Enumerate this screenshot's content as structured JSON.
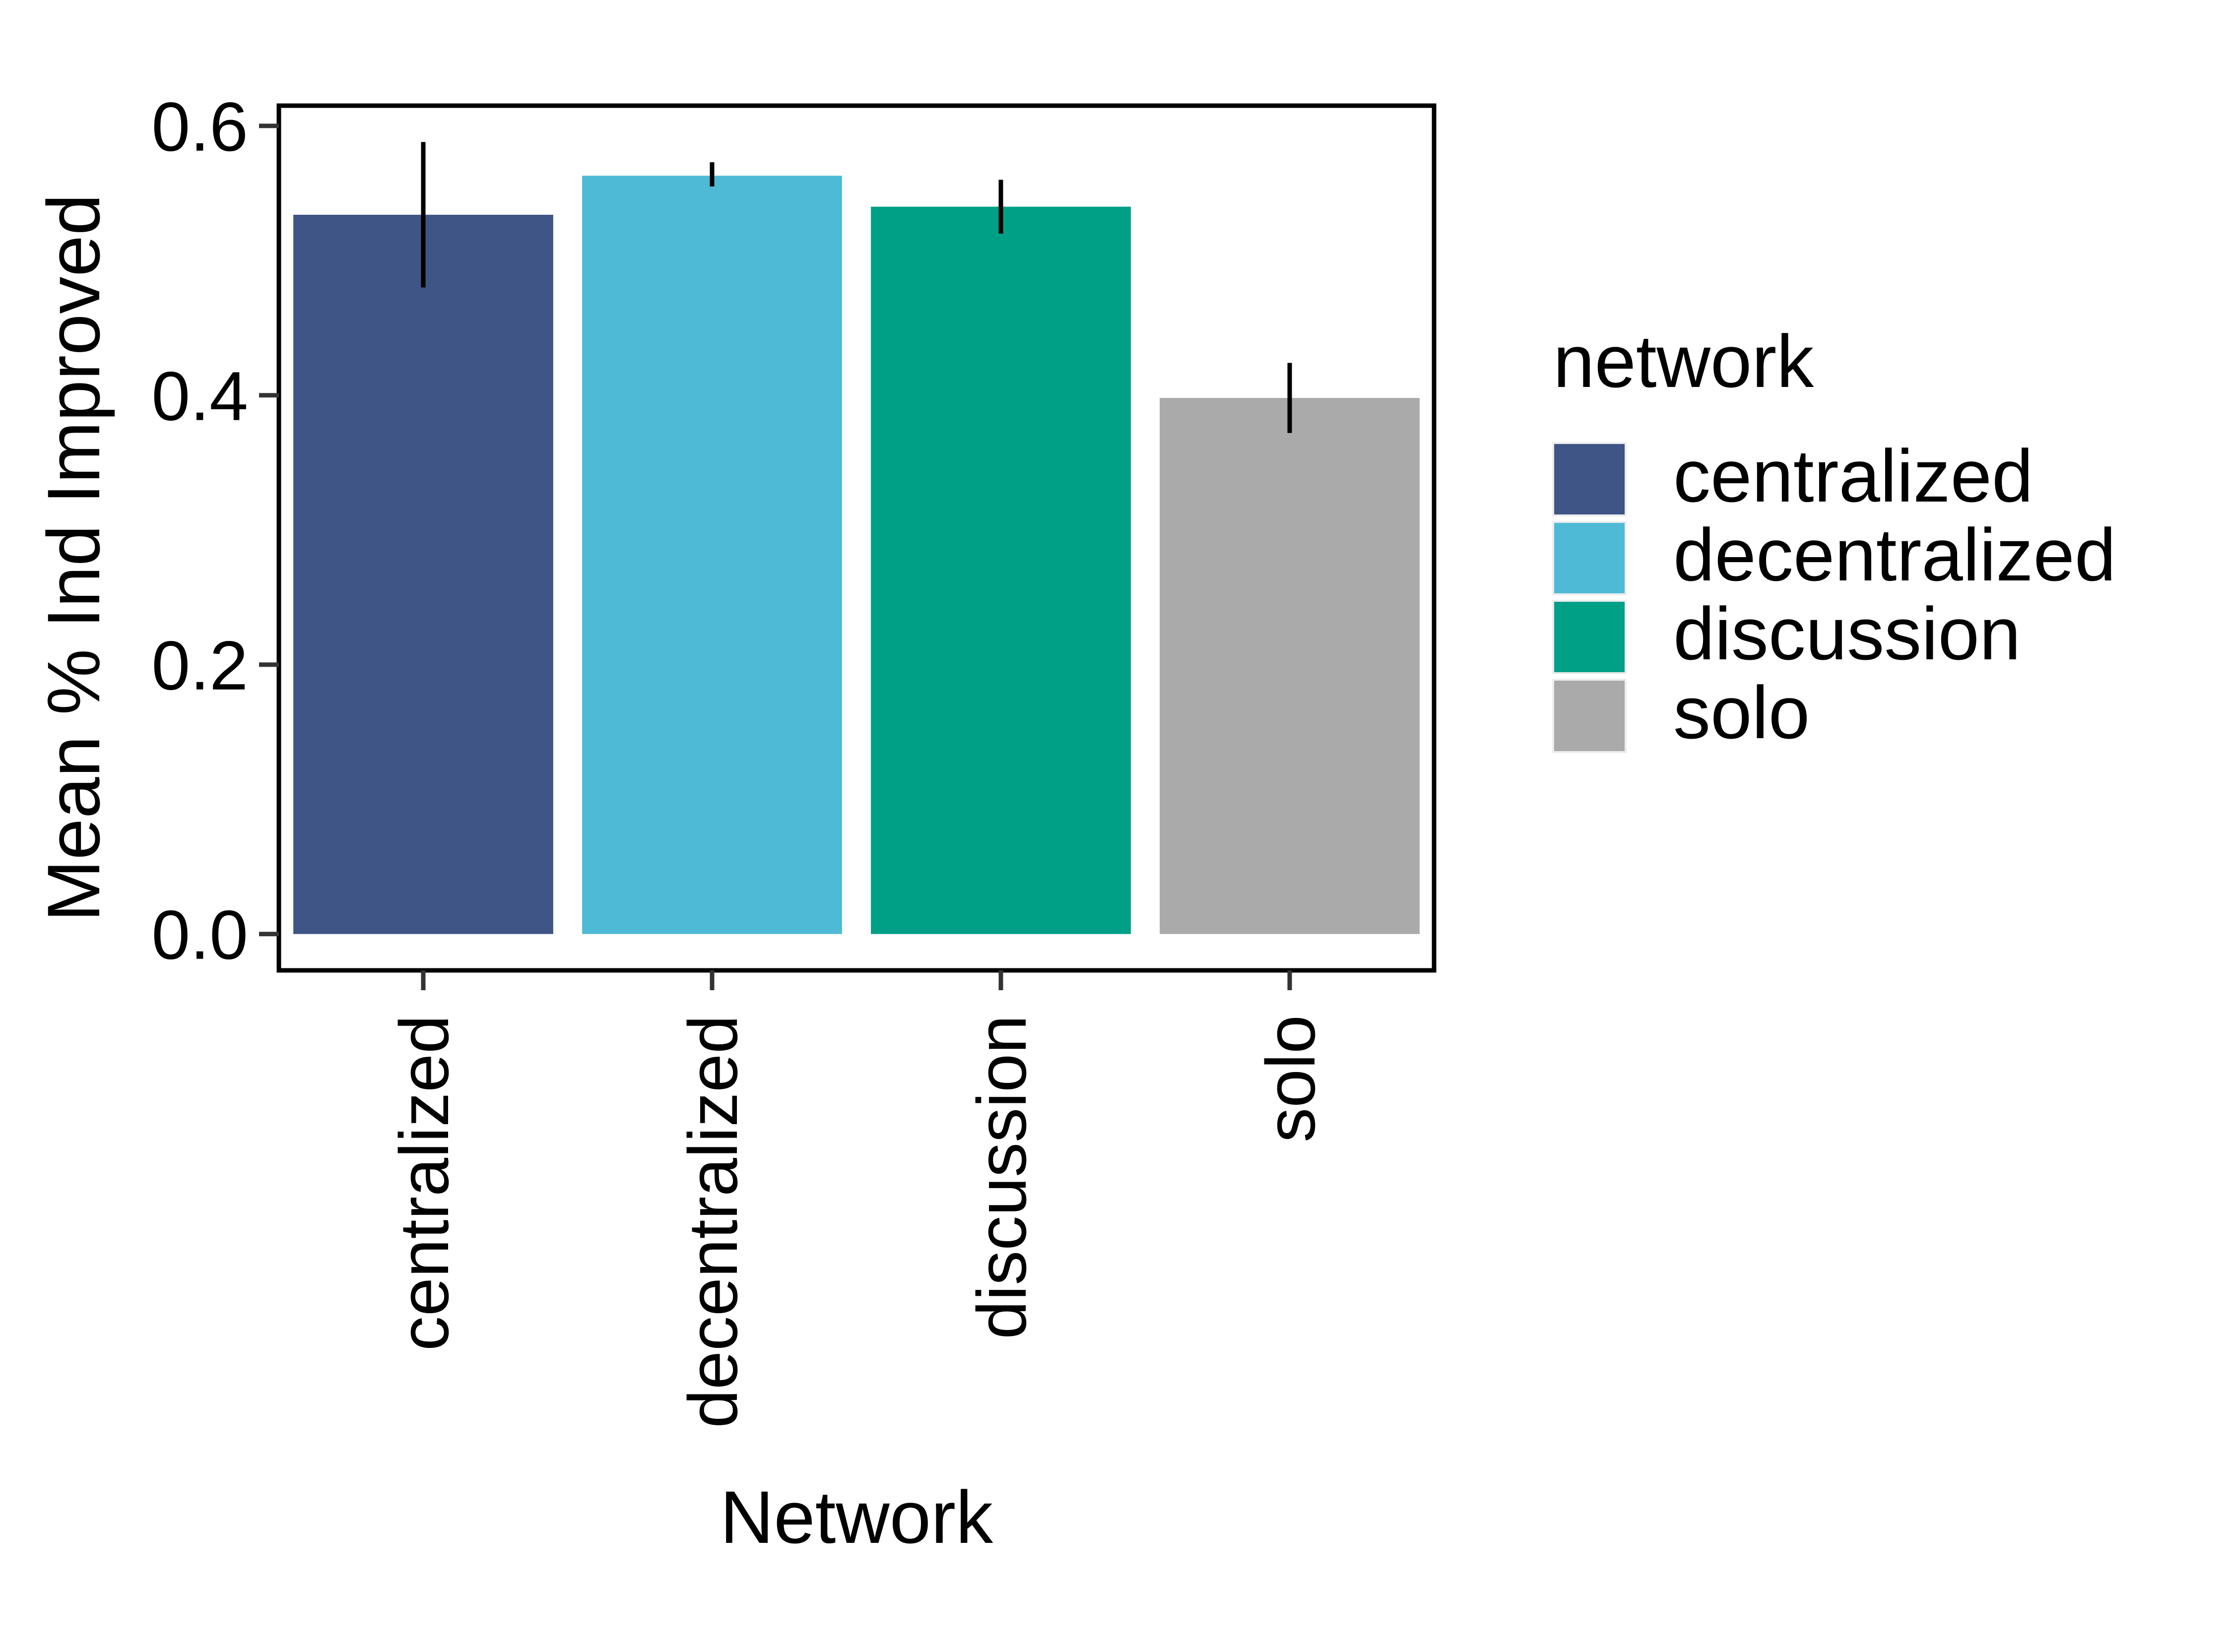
{
  "chart_data": {
    "type": "bar",
    "title": "",
    "xlabel": "Network",
    "ylabel": "Mean % Ind Improved",
    "categories": [
      "centralized",
      "decentralized",
      "discussion",
      "solo"
    ],
    "values": [
      0.534,
      0.563,
      0.54,
      0.398
    ],
    "error_low": [
      0.48,
      0.555,
      0.52,
      0.372
    ],
    "error_high": [
      0.588,
      0.573,
      0.56,
      0.424
    ],
    "colors": [
      "#3E5585",
      "#4FBAD6",
      "#00A087",
      "#AAAAAA"
    ],
    "ylim": [
      -0.027,
      0.615
    ],
    "yticks": [
      0.0,
      0.2,
      0.4,
      0.6
    ],
    "ytick_labels": [
      "0.0",
      "0.2",
      "0.4",
      "0.6"
    ],
    "grid": false,
    "legend": {
      "title": "network",
      "position": "right",
      "entries": [
        "centralized",
        "decentralized",
        "discussion",
        "solo"
      ]
    }
  }
}
